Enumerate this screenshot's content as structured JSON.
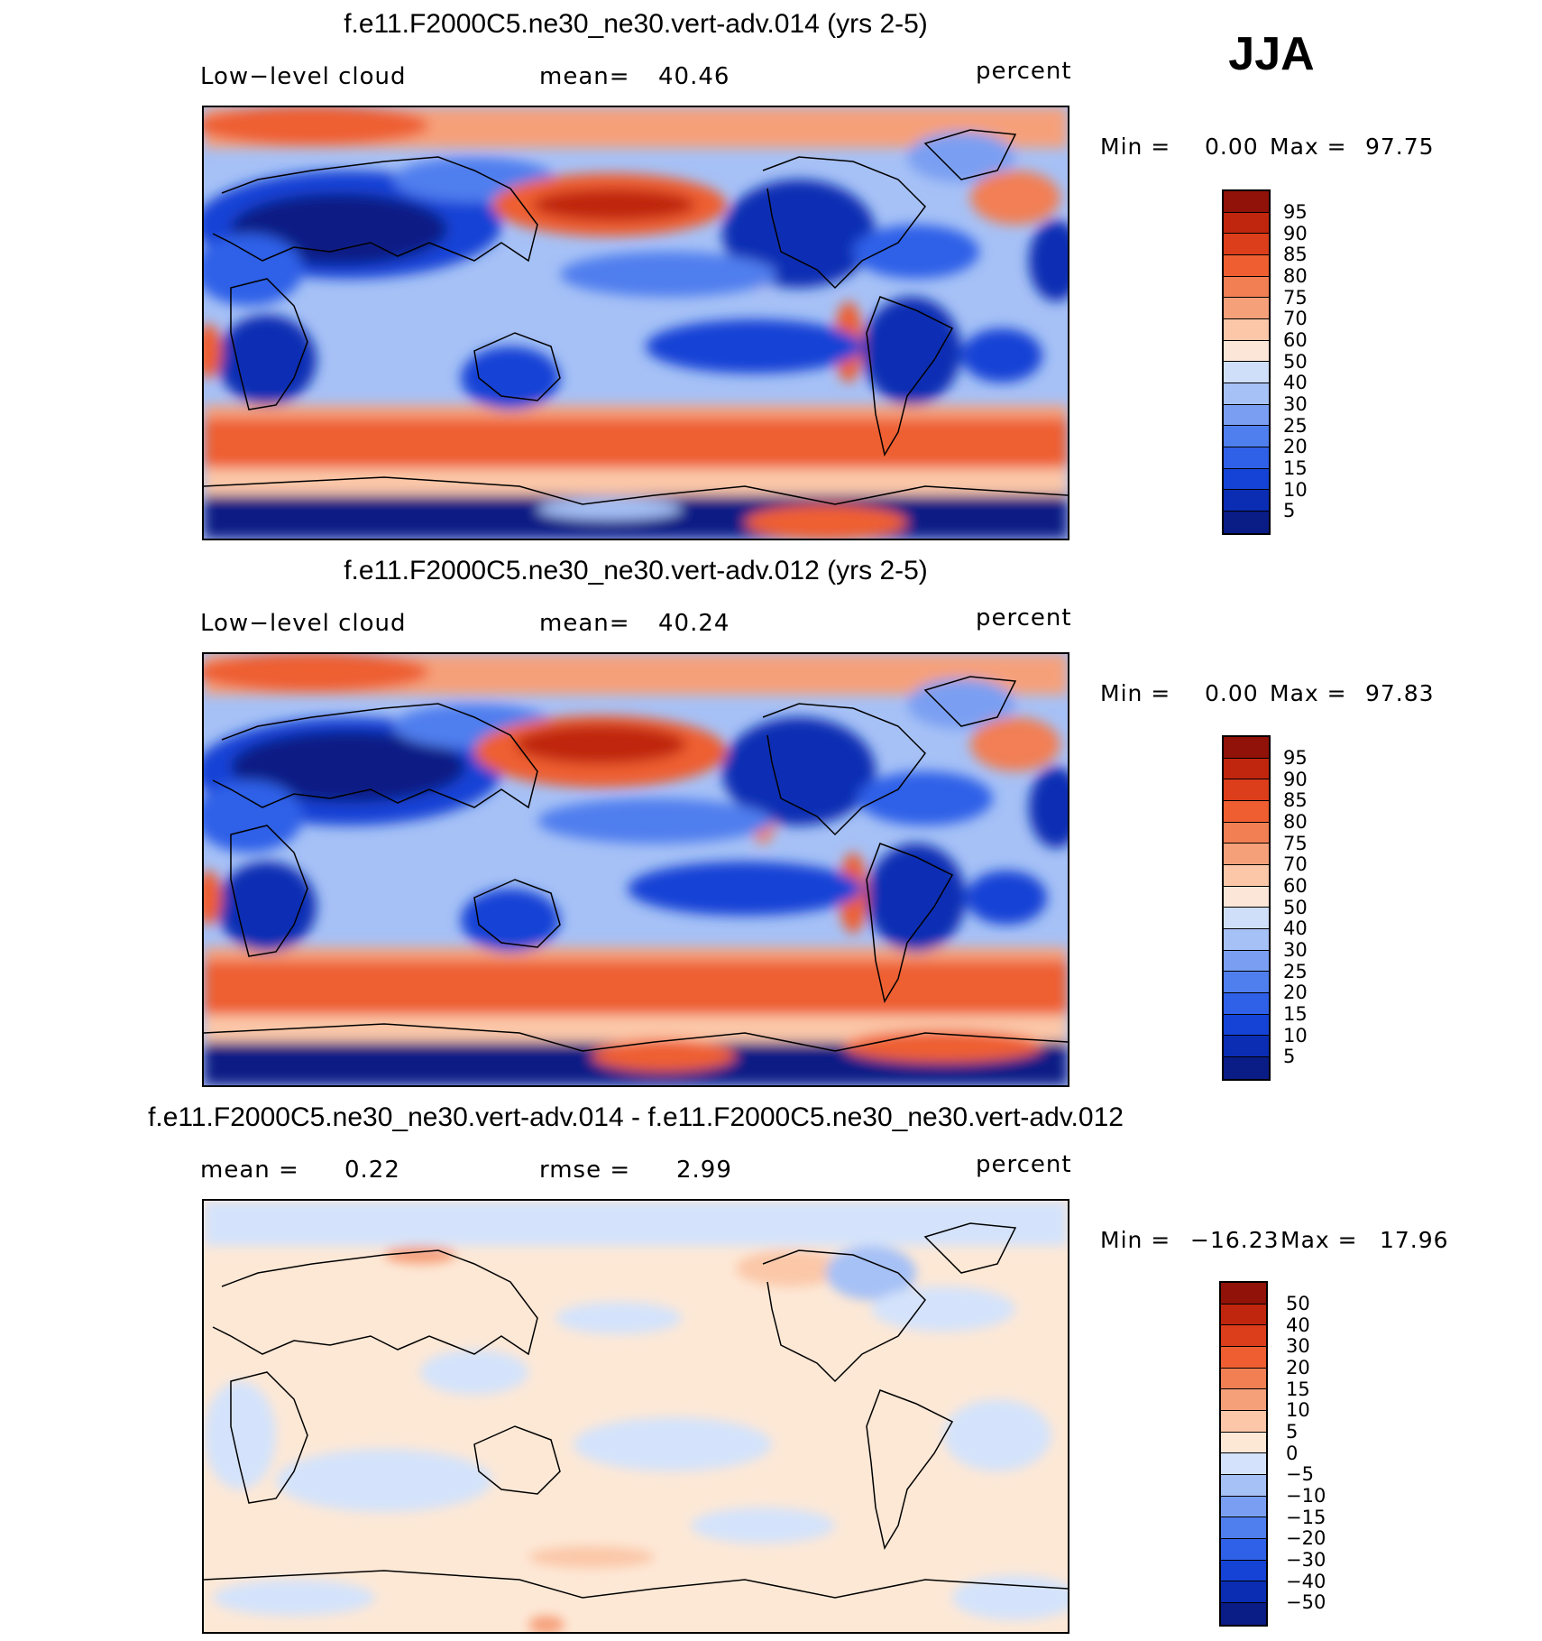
{
  "season": "JJA",
  "palette_abs": [
    "#0a1c85",
    "#0a2db4",
    "#1443d6",
    "#2f60e8",
    "#4f7eee",
    "#7a9ff2",
    "#a6c1f6",
    "#cfdffa",
    "#fbe6d7",
    "#fbc7a8",
    "#f6a07a",
    "#f27f54",
    "#ee5e31",
    "#dc3d1b",
    "#c0260e",
    "#901209"
  ],
  "palette_diff": [
    "#0a1c85",
    "#0a2db4",
    "#1443d6",
    "#2f60e8",
    "#4f7eee",
    "#7a9ff2",
    "#a6c1f6",
    "#d4e3fb",
    "#fde8d6",
    "#fbc7a8",
    "#f6a07a",
    "#f27f54",
    "#ee5e31",
    "#dc3d1b",
    "#c0260e",
    "#901209"
  ],
  "panels": [
    {
      "title": "f.e11.F2000C5.ne30_ne30.vert-adv.014 (yrs 2-5)",
      "left_label": "Low−level cloud",
      "mid_label": "mean=",
      "mid_value": "40.46",
      "units": "percent",
      "min_label": "Min =",
      "min_value": "0.00",
      "max_label": "Max =",
      "max_value": "97.75",
      "colorbar_labels": [
        "95",
        "90",
        "85",
        "80",
        "75",
        "70",
        "60",
        "50",
        "40",
        "30",
        "25",
        "20",
        "15",
        "10",
        "5"
      ]
    },
    {
      "title": "f.e11.F2000C5.ne30_ne30.vert-adv.012 (yrs 2-5)",
      "left_label": "Low−level cloud",
      "mid_label": "mean=",
      "mid_value": "40.24",
      "units": "percent",
      "min_label": "Min =",
      "min_value": "0.00",
      "max_label": "Max =",
      "max_value": "97.83",
      "colorbar_labels": [
        "95",
        "90",
        "85",
        "80",
        "75",
        "70",
        "60",
        "50",
        "40",
        "30",
        "25",
        "20",
        "15",
        "10",
        "5"
      ]
    },
    {
      "title": "f.e11.F2000C5.ne30_ne30.vert-adv.014 - f.e11.F2000C5.ne30_ne30.vert-adv.012",
      "left_label": "mean =",
      "left_value": "0.22",
      "mid_label": "rmse =",
      "mid_value": "2.99",
      "units": "percent",
      "min_label": "Min =",
      "min_value": "−16.23",
      "max_label": "Max =",
      "max_value": "17.96",
      "colorbar_labels": [
        "50",
        "40",
        "30",
        "20",
        "15",
        "10",
        "5",
        "0",
        "−5",
        "−10",
        "−15",
        "−20",
        "−30",
        "−40",
        "−50"
      ]
    }
  ]
}
